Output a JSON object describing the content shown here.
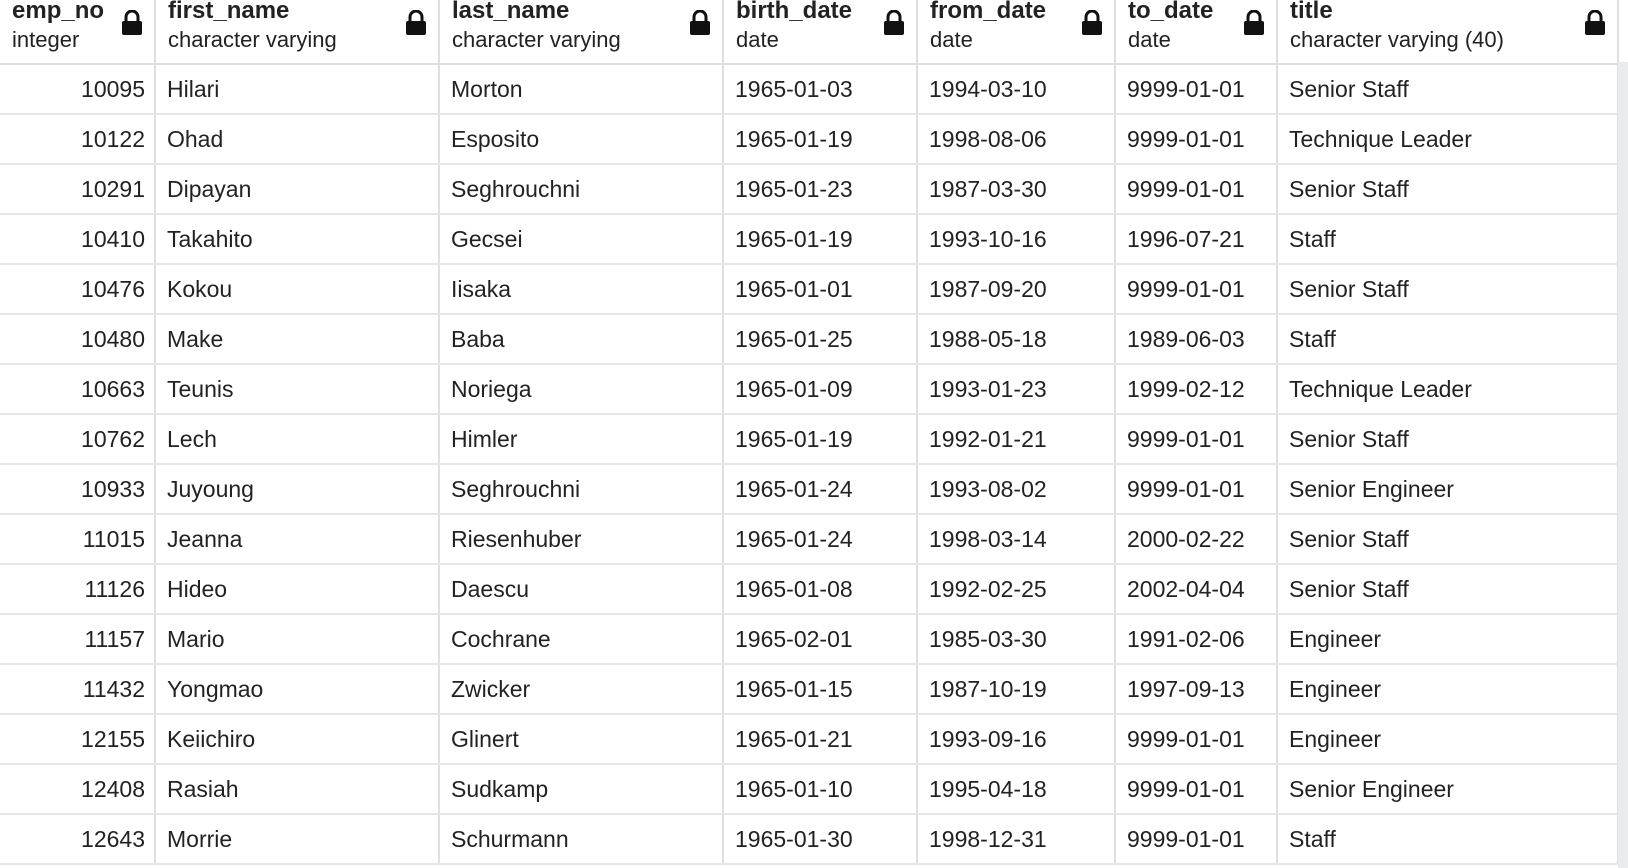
{
  "columns": [
    {
      "name": "emp_no",
      "type": "integer"
    },
    {
      "name": "first_name",
      "type": "character varying"
    },
    {
      "name": "last_name",
      "type": "character varying"
    },
    {
      "name": "birth_date",
      "type": "date"
    },
    {
      "name": "from_date",
      "type": "date"
    },
    {
      "name": "to_date",
      "type": "date"
    },
    {
      "name": "title",
      "type": "character varying (40)"
    }
  ],
  "rows": [
    [
      "10095",
      "Hilari",
      "Morton",
      "1965-01-03",
      "1994-03-10",
      "9999-01-01",
      "Senior Staff"
    ],
    [
      "10122",
      "Ohad",
      "Esposito",
      "1965-01-19",
      "1998-08-06",
      "9999-01-01",
      "Technique Leader"
    ],
    [
      "10291",
      "Dipayan",
      "Seghrouchni",
      "1965-01-23",
      "1987-03-30",
      "9999-01-01",
      "Senior Staff"
    ],
    [
      "10410",
      "Takahito",
      "Gecsei",
      "1965-01-19",
      "1993-10-16",
      "1996-07-21",
      "Staff"
    ],
    [
      "10476",
      "Kokou",
      "Iisaka",
      "1965-01-01",
      "1987-09-20",
      "9999-01-01",
      "Senior Staff"
    ],
    [
      "10480",
      "Make",
      "Baba",
      "1965-01-25",
      "1988-05-18",
      "1989-06-03",
      "Staff"
    ],
    [
      "10663",
      "Teunis",
      "Noriega",
      "1965-01-09",
      "1993-01-23",
      "1999-02-12",
      "Technique Leader"
    ],
    [
      "10762",
      "Lech",
      "Himler",
      "1965-01-19",
      "1992-01-21",
      "9999-01-01",
      "Senior Staff"
    ],
    [
      "10933",
      "Juyoung",
      "Seghrouchni",
      "1965-01-24",
      "1993-08-02",
      "9999-01-01",
      "Senior Engineer"
    ],
    [
      "11015",
      "Jeanna",
      "Riesenhuber",
      "1965-01-24",
      "1998-03-14",
      "2000-02-22",
      "Senior Staff"
    ],
    [
      "11126",
      "Hideo",
      "Daescu",
      "1965-01-08",
      "1992-02-25",
      "2002-04-04",
      "Senior Staff"
    ],
    [
      "11157",
      "Mario",
      "Cochrane",
      "1965-02-01",
      "1985-03-30",
      "1991-02-06",
      "Engineer"
    ],
    [
      "11432",
      "Yongmao",
      "Zwicker",
      "1965-01-15",
      "1987-10-19",
      "1997-09-13",
      "Engineer"
    ],
    [
      "12155",
      "Keiichiro",
      "Glinert",
      "1965-01-21",
      "1993-09-16",
      "9999-01-01",
      "Engineer"
    ],
    [
      "12408",
      "Rasiah",
      "Sudkamp",
      "1965-01-10",
      "1995-04-18",
      "9999-01-01",
      "Senior Engineer"
    ],
    [
      "12643",
      "Morrie",
      "Schurmann",
      "1965-01-30",
      "1998-12-31",
      "9999-01-01",
      "Staff"
    ]
  ],
  "icons": {
    "column_lock": "lock-icon"
  },
  "colors": {
    "grid_line": "#dcdfe3",
    "text": "#222222",
    "scrollbar": "#e9ebee"
  }
}
